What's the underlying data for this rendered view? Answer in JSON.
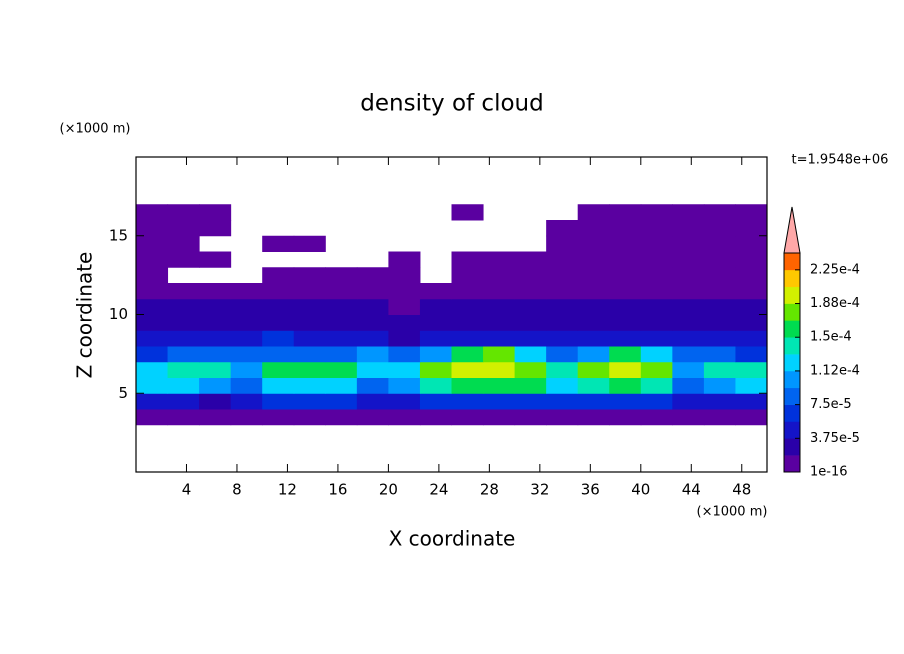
{
  "chart_data": {
    "type": "contour",
    "title": "density of cloud",
    "xlabel": "X coordinate",
    "ylabel": "Z coordinate",
    "x_unit": "(×1000 m)",
    "y_unit": "(×1000 m)",
    "time_label": "t=1.9548e+06",
    "xlim": [
      0,
      50
    ],
    "ylim": [
      0,
      20
    ],
    "xticks": [
      4,
      8,
      12,
      16,
      20,
      24,
      28,
      32,
      36,
      40,
      44,
      48
    ],
    "yticks": [
      5,
      10,
      15
    ],
    "x": [
      1.25,
      3.75,
      6.25,
      8.75,
      11.25,
      13.75,
      16.25,
      18.75,
      21.25,
      23.75,
      26.25,
      28.75,
      31.25,
      33.75,
      36.25,
      38.75,
      41.25,
      43.75,
      46.25,
      48.75
    ],
    "y": [
      3.5,
      4.5,
      5.5,
      6.5,
      7.5,
      8.5,
      9.5,
      10.5,
      11.5,
      12.5,
      13.5,
      14.5,
      15.5,
      16.5
    ],
    "values": [
      [
        8e-06,
        8e-06,
        8e-06,
        8e-06,
        8e-06,
        8e-06,
        8e-06,
        8e-06,
        8e-06,
        8e-06,
        8e-06,
        8e-06,
        8e-06,
        8e-06,
        8e-06,
        8e-06,
        8e-06,
        8e-06,
        8e-06,
        8e-06
      ],
      [
        5e-05,
        4.5e-05,
        3e-05,
        4e-05,
        6e-05,
        6e-05,
        6e-05,
        4e-05,
        5e-05,
        6e-05,
        6e-05,
        6e-05,
        6e-05,
        6e-05,
        6e-05,
        6e-05,
        6e-05,
        4e-05,
        5e-05,
        5e-05
      ],
      [
        0.000115,
        0.00012,
        0.00011,
        8e-05,
        0.00012,
        0.00013,
        0.00012,
        9e-05,
        0.00011,
        0.00014,
        0.000155,
        0.00016,
        0.00015,
        0.00012,
        0.00014,
        0.00015,
        0.000145,
        9e-05,
        0.00011,
        0.00012
      ],
      [
        0.00013,
        0.00014,
        0.000135,
        0.00011,
        0.00015,
        0.00016,
        0.000155,
        0.00012,
        0.00013,
        0.00017,
        0.00019,
        0.0002,
        0.00018,
        0.00014,
        0.00017,
        0.00019,
        0.00018,
        0.00011,
        0.00014,
        0.000145
      ],
      [
        7e-05,
        8e-05,
        8e-05,
        9e-05,
        9e-05,
        8e-05,
        9e-05,
        0.0001,
        9e-05,
        0.00011,
        0.00016,
        0.00018,
        0.00013,
        9e-05,
        0.00011,
        0.00015,
        0.00012,
        9e-05,
        8e-05,
        7e-05
      ],
      [
        4e-05,
        5e-05,
        4e-05,
        5e-05,
        6e-05,
        5e-05,
        4e-05,
        4e-05,
        3e-05,
        4e-05,
        4e-05,
        5e-05,
        4e-05,
        4e-05,
        4e-05,
        4e-05,
        4e-05,
        4e-05,
        4e-05,
        5e-05
      ],
      [
        3e-05,
        3e-05,
        3e-05,
        3.5e-05,
        3e-05,
        3e-05,
        3e-05,
        2.5e-05,
        2.5e-05,
        3e-05,
        2.5e-05,
        2.5e-05,
        2.5e-05,
        3e-05,
        3e-05,
        3e-05,
        3e-05,
        3e-05,
        3e-05,
        3e-05
      ],
      [
        2e-05,
        2e-05,
        2.5e-05,
        2e-05,
        2e-05,
        2e-05,
        2e-05,
        2e-05,
        1.5e-05,
        2e-05,
        2e-05,
        2e-05,
        2e-05,
        2e-05,
        2e-05,
        2e-05,
        2e-05,
        2e-05,
        2e-05,
        2e-05
      ],
      [
        1e-05,
        1e-05,
        1.5e-05,
        1.5e-05,
        1.5e-05,
        1e-05,
        1e-05,
        1e-05,
        1e-05,
        1.5e-05,
        1.5e-05,
        1e-05,
        1e-05,
        1e-05,
        1e-05,
        1.5e-05,
        1.5e-05,
        1e-05,
        1e-05,
        1e-05
      ],
      [
        8e-06,
        null,
        null,
        null,
        8e-06,
        8e-06,
        8e-06,
        8e-06,
        8e-06,
        null,
        8e-06,
        8e-06,
        8e-06,
        8e-06,
        8e-06,
        8e-06,
        8e-06,
        8e-06,
        8e-06,
        8e-06
      ],
      [
        8e-06,
        8e-06,
        8e-06,
        null,
        null,
        null,
        null,
        null,
        8e-06,
        null,
        8e-06,
        8e-06,
        8e-06,
        8e-06,
        8e-06,
        8e-06,
        8e-06,
        8e-06,
        8e-06,
        8e-06
      ],
      [
        8e-06,
        8e-06,
        null,
        null,
        8e-06,
        8e-06,
        null,
        null,
        null,
        null,
        null,
        null,
        null,
        8e-06,
        8e-06,
        8e-06,
        8e-06,
        8e-06,
        8e-06,
        8e-06
      ],
      [
        8e-06,
        8e-06,
        8e-06,
        null,
        null,
        null,
        null,
        null,
        null,
        null,
        null,
        null,
        null,
        8e-06,
        8e-06,
        8e-06,
        8e-06,
        8e-06,
        8e-06,
        8e-06
      ],
      [
        8e-06,
        8e-06,
        8e-06,
        null,
        null,
        null,
        null,
        null,
        null,
        null,
        8e-06,
        null,
        null,
        null,
        8e-06,
        8e-06,
        8e-06,
        8e-06,
        8e-06,
        8e-06
      ]
    ],
    "levels": [
      1e-16,
      1.875e-05,
      3.75e-05,
      5.625e-05,
      7.5e-05,
      9.375e-05,
      0.0001125,
      0.00013125,
      0.00015,
      0.00016875,
      0.0001875,
      0.00020625,
      0.000225,
      0.00024375
    ],
    "colors": [
      "#5a00a0",
      "#2a00a8",
      "#1414c8",
      "#0032dc",
      "#0064f0",
      "#0096ff",
      "#00d2ff",
      "#00e6b4",
      "#00dc50",
      "#64e600",
      "#d2f000",
      "#ffc800",
      "#ff6400"
    ],
    "extend_color": "#ffa8a8",
    "colorbar_ticks": [
      {
        "value": 1e-16,
        "label": "1e-16"
      },
      {
        "value": 3.75e-05,
        "label": "3.75e-5"
      },
      {
        "value": 7.5e-05,
        "label": "7.5e-5"
      },
      {
        "value": 0.0001125,
        "label": "1.12e-4"
      },
      {
        "value": 0.00015,
        "label": "1.5e-4"
      },
      {
        "value": 0.0001875,
        "label": "1.88e-4"
      },
      {
        "value": 0.000225,
        "label": "2.25e-4"
      }
    ]
  }
}
